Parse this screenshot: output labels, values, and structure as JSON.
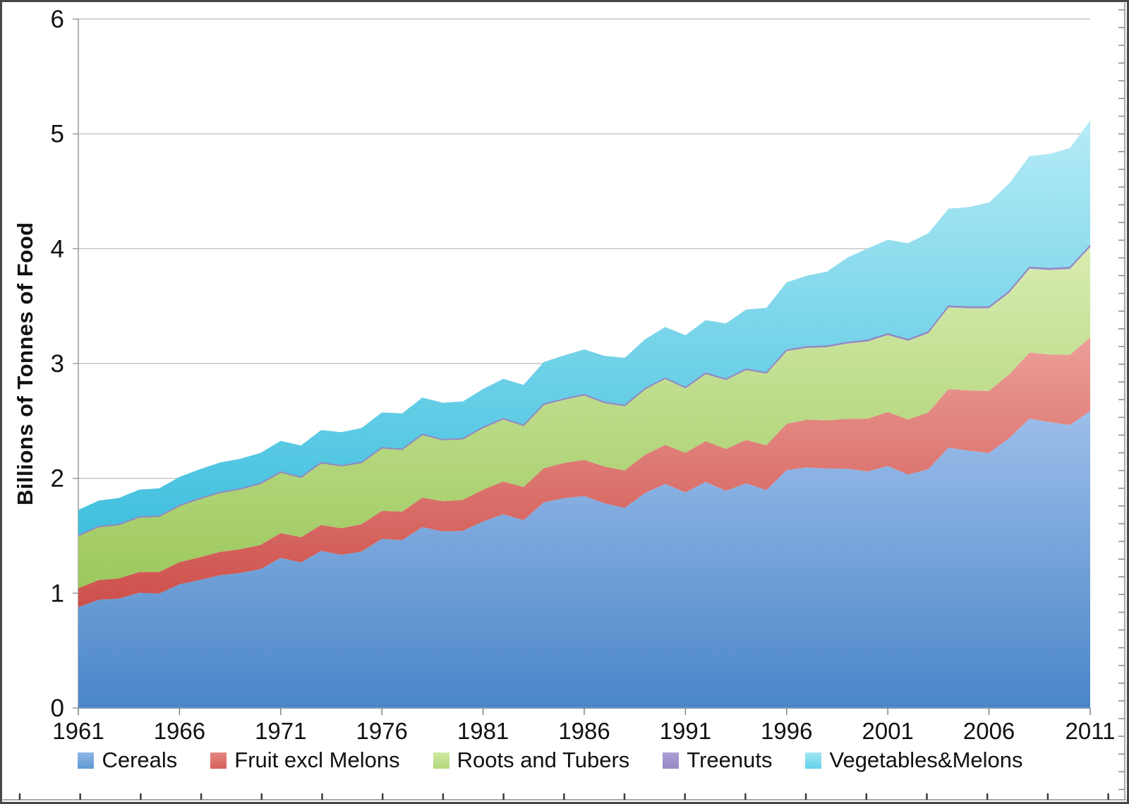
{
  "chart_data": {
    "type": "area",
    "stacked": true,
    "title": "",
    "ylabel": "Billions of Tonnes of Food",
    "xlabel": "",
    "ylim": [
      0,
      6
    ],
    "x_start_year": 1961,
    "x_end_year": 2011,
    "x_tick_interval": 5,
    "grid": "horizontal",
    "legend_position": "bottom",
    "y_tick_labels": [
      "0",
      "1",
      "2",
      "3",
      "4",
      "5",
      "6"
    ],
    "x_tick_labels": [
      "1961",
      "1966",
      "1971",
      "1976",
      "1981",
      "1986",
      "1991",
      "1996",
      "2001",
      "2006",
      "2011"
    ],
    "series": [
      {
        "name": "Cereals",
        "color_top": "#9dbeea",
        "color_bottom": "#4a86c8",
        "legend_color_top": "#8cb6e6",
        "legend_color_bottom": "#5f9bd4",
        "values": [
          0.877,
          0.943,
          0.952,
          1.003,
          0.998,
          1.077,
          1.115,
          1.156,
          1.176,
          1.209,
          1.308,
          1.268,
          1.368,
          1.334,
          1.362,
          1.473,
          1.461,
          1.575,
          1.538,
          1.543,
          1.625,
          1.688,
          1.635,
          1.791,
          1.828,
          1.846,
          1.783,
          1.742,
          1.872,
          1.952,
          1.878,
          1.969,
          1.891,
          1.957,
          1.898,
          2.072,
          2.096,
          2.085,
          2.084,
          2.06,
          2.108,
          2.033,
          2.079,
          2.268,
          2.241,
          2.221,
          2.351,
          2.52,
          2.489,
          2.465,
          2.587
        ]
      },
      {
        "name": "Fruit excl Melons",
        "color_top": "#ec9e98",
        "color_bottom": "#cd4f4a",
        "legend_color_top": "#e58680",
        "legend_color_bottom": "#d6615c",
        "values": [
          0.166,
          0.171,
          0.176,
          0.182,
          0.187,
          0.193,
          0.198,
          0.203,
          0.207,
          0.211,
          0.216,
          0.22,
          0.226,
          0.232,
          0.239,
          0.244,
          0.25,
          0.257,
          0.263,
          0.27,
          0.277,
          0.285,
          0.29,
          0.298,
          0.306,
          0.315,
          0.32,
          0.326,
          0.333,
          0.34,
          0.345,
          0.355,
          0.365,
          0.378,
          0.39,
          0.403,
          0.415,
          0.42,
          0.435,
          0.46,
          0.47,
          0.48,
          0.495,
          0.51,
          0.525,
          0.54,
          0.555,
          0.575,
          0.59,
          0.61,
          0.64
        ]
      },
      {
        "name": "Roots and Tubers",
        "color_top": "#d9ecb0",
        "color_bottom": "#9cc85c",
        "legend_color_top": "#cfe8a4",
        "legend_color_bottom": "#b4d97c",
        "values": [
          0.455,
          0.462,
          0.466,
          0.475,
          0.482,
          0.49,
          0.507,
          0.514,
          0.52,
          0.531,
          0.527,
          0.518,
          0.538,
          0.54,
          0.533,
          0.544,
          0.537,
          0.546,
          0.531,
          0.527,
          0.536,
          0.54,
          0.531,
          0.55,
          0.551,
          0.56,
          0.552,
          0.56,
          0.568,
          0.574,
          0.56,
          0.584,
          0.6,
          0.607,
          0.624,
          0.633,
          0.625,
          0.637,
          0.655,
          0.672,
          0.67,
          0.685,
          0.69,
          0.71,
          0.715,
          0.72,
          0.71,
          0.73,
          0.735,
          0.748,
          0.787
        ]
      },
      {
        "name": "Treenuts",
        "color_top": "#a99bd2",
        "color_bottom": "#8678b4",
        "legend_color_top": "#af9fd6",
        "legend_color_bottom": "#9788c2",
        "values": [
          0.003,
          0.003,
          0.003,
          0.003,
          0.003,
          0.003,
          0.004,
          0.004,
          0.004,
          0.004,
          0.004,
          0.004,
          0.004,
          0.004,
          0.005,
          0.005,
          0.005,
          0.005,
          0.005,
          0.005,
          0.006,
          0.006,
          0.006,
          0.006,
          0.006,
          0.007,
          0.007,
          0.007,
          0.007,
          0.007,
          0.008,
          0.008,
          0.008,
          0.008,
          0.008,
          0.009,
          0.009,
          0.009,
          0.009,
          0.01,
          0.01,
          0.01,
          0.01,
          0.011,
          0.011,
          0.011,
          0.012,
          0.012,
          0.012,
          0.013,
          0.013
        ]
      },
      {
        "name": "Vegetables&Melons",
        "color_top": "#b6ebf6",
        "color_bottom": "#3ebfde",
        "legend_color_top": "#a2e6f4",
        "legend_color_bottom": "#63d2ec",
        "values": [
          0.224,
          0.227,
          0.232,
          0.238,
          0.243,
          0.25,
          0.256,
          0.261,
          0.264,
          0.266,
          0.272,
          0.276,
          0.285,
          0.292,
          0.3,
          0.308,
          0.313,
          0.32,
          0.322,
          0.324,
          0.334,
          0.348,
          0.352,
          0.368,
          0.38,
          0.395,
          0.405,
          0.415,
          0.43,
          0.445,
          0.455,
          0.462,
          0.485,
          0.52,
          0.565,
          0.59,
          0.62,
          0.65,
          0.74,
          0.8,
          0.82,
          0.84,
          0.86,
          0.85,
          0.87,
          0.91,
          0.94,
          0.97,
          1.0,
          1.04,
          1.09
        ]
      }
    ]
  }
}
